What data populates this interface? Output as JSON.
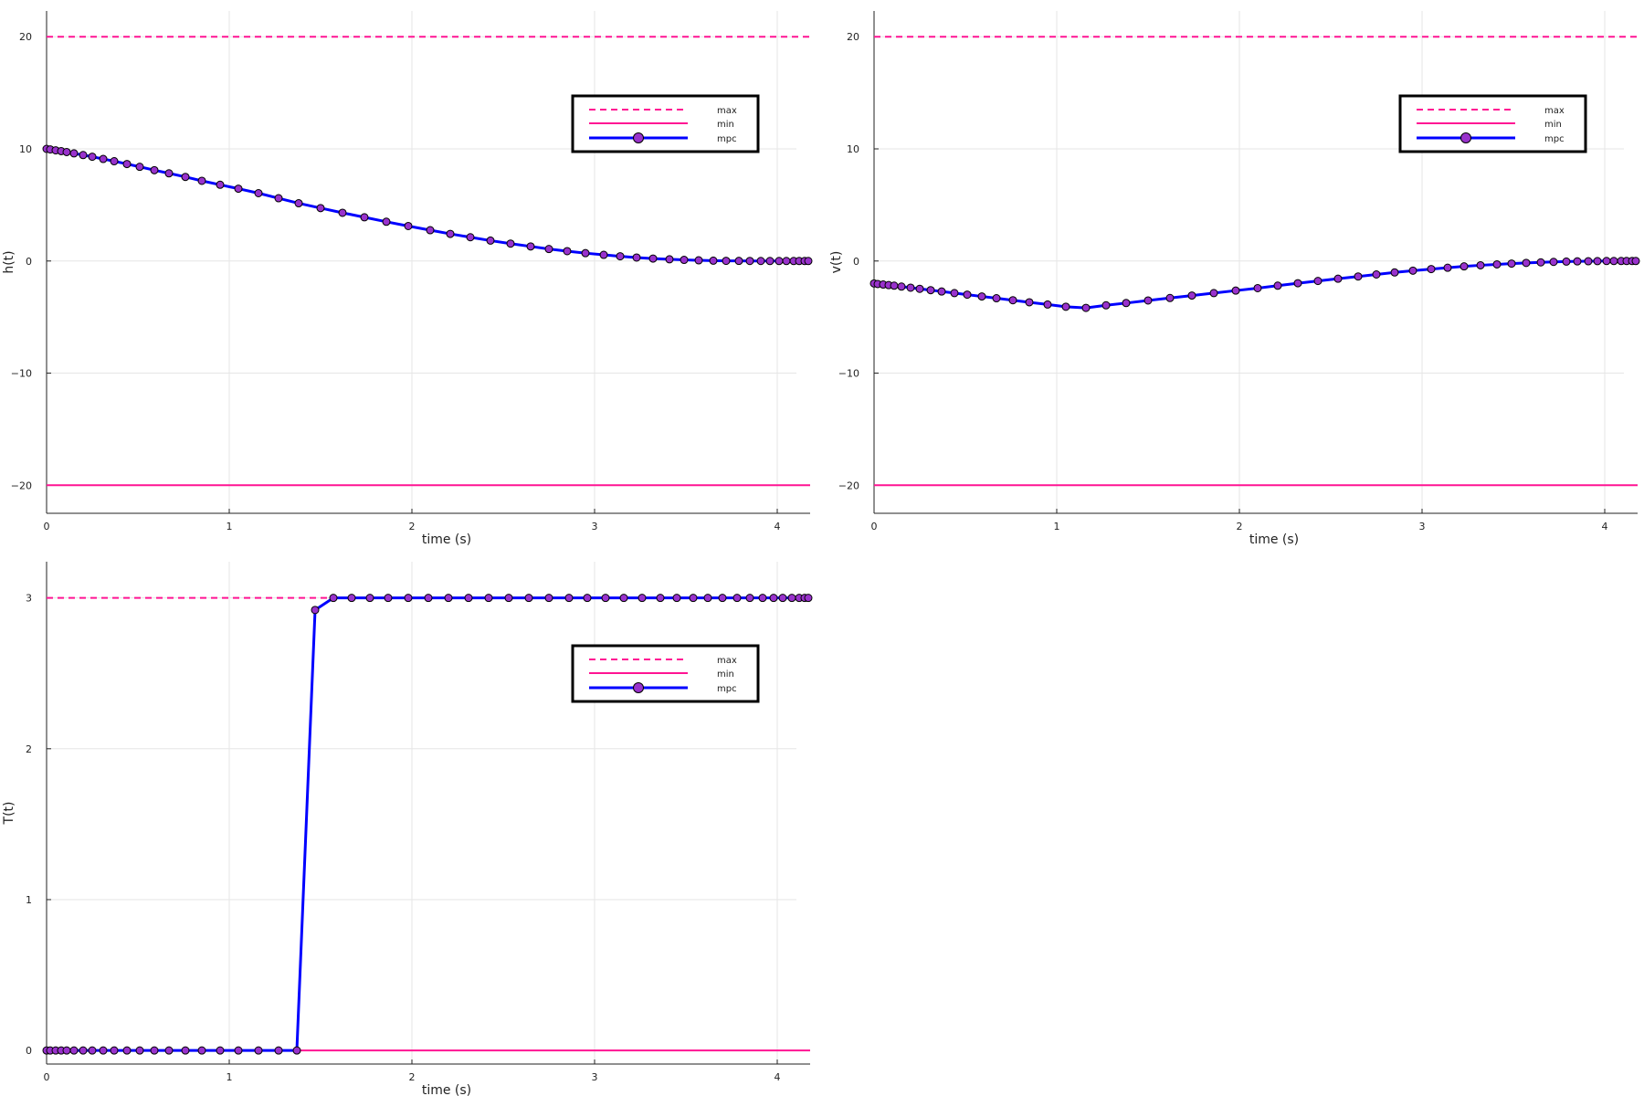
{
  "colors": {
    "max": "#ff1493",
    "min": "#ff1493",
    "mpc_line": "#0000ff",
    "mpc_marker": "#9932cc",
    "grid": "#e6e6e6",
    "axis": "#222222"
  },
  "chart_data": [
    {
      "type": "line",
      "id": "h",
      "xlabel": "time (s)",
      "ylabel": "h(t)",
      "xlim": [
        0,
        4.18
      ],
      "ylim": [
        -22.5,
        22.3
      ],
      "xticks": [
        0,
        1,
        2,
        3,
        4
      ],
      "xtick_labels": [
        "0",
        "1",
        "2",
        "3",
        "4"
      ],
      "yticks": [
        -20,
        -10,
        0,
        10,
        20
      ],
      "ytick_labels": [
        "−20",
        "−10",
        "0",
        "10",
        "20"
      ],
      "grid": true,
      "legend": "top-right",
      "legend_entries": [
        "max",
        "min",
        "mpc"
      ],
      "max_value": 20,
      "min_value": -20,
      "series": [
        {
          "name": "mpc",
          "x": [
            0,
            0.02,
            0.05,
            0.08,
            0.11,
            0.15,
            0.2,
            0.25,
            0.31,
            0.37,
            0.44,
            0.51,
            0.59,
            0.67,
            0.76,
            0.85,
            0.95,
            1.05,
            1.16,
            1.27,
            1.38,
            1.5,
            1.62,
            1.74,
            1.86,
            1.98,
            2.1,
            2.21,
            2.32,
            2.43,
            2.54,
            2.65,
            2.75,
            2.85,
            2.95,
            3.05,
            3.14,
            3.23,
            3.32,
            3.41,
            3.49,
            3.57,
            3.65,
            3.72,
            3.79,
            3.85,
            3.91,
            3.96,
            4.01,
            4.05,
            4.09,
            4.12,
            4.15,
            4.17
          ],
          "values": [
            10.0,
            9.95,
            9.87,
            9.8,
            9.72,
            9.6,
            9.45,
            9.3,
            9.1,
            8.9,
            8.65,
            8.4,
            8.1,
            7.82,
            7.5,
            7.15,
            6.8,
            6.45,
            6.05,
            5.6,
            5.15,
            4.72,
            4.3,
            3.9,
            3.5,
            3.12,
            2.75,
            2.42,
            2.12,
            1.82,
            1.55,
            1.3,
            1.07,
            0.88,
            0.7,
            0.55,
            0.42,
            0.31,
            0.22,
            0.15,
            0.1,
            0.06,
            0.03,
            0.015,
            0.008,
            0.004,
            0.002,
            0.001,
            0.0,
            0.0,
            0.0,
            0.0,
            0.0,
            0.0
          ]
        }
      ]
    },
    {
      "type": "line",
      "id": "v",
      "xlabel": "time (s)",
      "ylabel": "v(t)",
      "xlim": [
        0,
        4.18
      ],
      "ylim": [
        -22.5,
        22.3
      ],
      "xticks": [
        0,
        1,
        2,
        3,
        4
      ],
      "xtick_labels": [
        "0",
        "1",
        "2",
        "3",
        "4"
      ],
      "yticks": [
        -20,
        -10,
        0,
        10,
        20
      ],
      "ytick_labels": [
        "−20",
        "−10",
        "0",
        "10",
        "20"
      ],
      "grid": true,
      "legend": "top-right",
      "legend_entries": [
        "max",
        "min",
        "mpc"
      ],
      "max_value": 20,
      "min_value": -20,
      "series": [
        {
          "name": "mpc",
          "x": [
            0,
            0.02,
            0.05,
            0.08,
            0.11,
            0.15,
            0.2,
            0.25,
            0.31,
            0.37,
            0.44,
            0.51,
            0.59,
            0.67,
            0.76,
            0.85,
            0.95,
            1.05,
            1.16,
            1.27,
            1.38,
            1.5,
            1.62,
            1.74,
            1.86,
            1.98,
            2.1,
            2.21,
            2.32,
            2.43,
            2.54,
            2.65,
            2.75,
            2.85,
            2.95,
            3.05,
            3.14,
            3.23,
            3.32,
            3.41,
            3.49,
            3.57,
            3.65,
            3.72,
            3.79,
            3.85,
            3.91,
            3.96,
            4.01,
            4.05,
            4.09,
            4.12,
            4.15,
            4.17
          ],
          "values": [
            -2.0,
            -2.05,
            -2.1,
            -2.15,
            -2.2,
            -2.28,
            -2.38,
            -2.48,
            -2.6,
            -2.72,
            -2.86,
            -3.0,
            -3.16,
            -3.32,
            -3.5,
            -3.68,
            -3.88,
            -4.08,
            -4.18,
            -3.95,
            -3.75,
            -3.52,
            -3.3,
            -3.08,
            -2.86,
            -2.64,
            -2.42,
            -2.2,
            -1.98,
            -1.78,
            -1.58,
            -1.38,
            -1.2,
            -1.02,
            -0.86,
            -0.72,
            -0.6,
            -0.48,
            -0.38,
            -0.3,
            -0.23,
            -0.17,
            -0.12,
            -0.08,
            -0.05,
            -0.03,
            -0.02,
            -0.01,
            0.0,
            0.0,
            0.0,
            0.0,
            0.0,
            0.0
          ]
        }
      ]
    },
    {
      "type": "line",
      "id": "T",
      "xlabel": "time (s)",
      "ylabel": "T(t)",
      "xlim": [
        0,
        4.18
      ],
      "ylim": [
        -0.09,
        3.24
      ],
      "xticks": [
        0,
        1,
        2,
        3,
        4
      ],
      "xtick_labels": [
        "0",
        "1",
        "2",
        "3",
        "4"
      ],
      "yticks": [
        0,
        1,
        2,
        3
      ],
      "ytick_labels": [
        "0",
        "1",
        "2",
        "3"
      ],
      "grid": true,
      "legend": "top-right",
      "legend_entries": [
        "max",
        "min",
        "mpc"
      ],
      "max_value": 3,
      "min_value": 0,
      "series": [
        {
          "name": "mpc",
          "x": [
            0,
            0.02,
            0.05,
            0.08,
            0.11,
            0.15,
            0.2,
            0.25,
            0.31,
            0.37,
            0.44,
            0.51,
            0.59,
            0.67,
            0.76,
            0.85,
            0.95,
            1.05,
            1.16,
            1.27,
            1.37,
            1.47,
            1.57,
            1.67,
            1.77,
            1.87,
            1.98,
            2.09,
            2.2,
            2.31,
            2.42,
            2.53,
            2.64,
            2.75,
            2.86,
            2.96,
            3.06,
            3.16,
            3.26,
            3.36,
            3.45,
            3.54,
            3.62,
            3.7,
            3.78,
            3.85,
            3.92,
            3.98,
            4.03,
            4.08,
            4.12,
            4.15,
            4.17
          ],
          "values": [
            0,
            0,
            0,
            0,
            0,
            0,
            0,
            0,
            0,
            0,
            0,
            0,
            0,
            0,
            0,
            0,
            0,
            0,
            0,
            0,
            0,
            2.92,
            3,
            3,
            3,
            3,
            3,
            3,
            3,
            3,
            3,
            3,
            3,
            3,
            3,
            3,
            3,
            3,
            3,
            3,
            3,
            3,
            3,
            3,
            3,
            3,
            3,
            3,
            3,
            3,
            3,
            3,
            3
          ]
        }
      ]
    }
  ]
}
